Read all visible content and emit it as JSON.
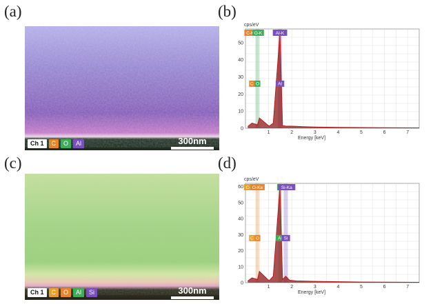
{
  "panels": {
    "a": {
      "label": "(a)"
    },
    "b": {
      "label": "(b)"
    },
    "c": {
      "label": "(c)"
    },
    "d": {
      "label": "(d)"
    }
  },
  "map_a": {
    "legend": [
      {
        "text": "Ch 1",
        "color": "#ffffff"
      },
      {
        "text": "C",
        "color": "#e8872a"
      },
      {
        "text": "O",
        "color": "#3fae5a"
      },
      {
        "text": "Al",
        "color": "#7a4fc0"
      }
    ],
    "scalebar": "300nm"
  },
  "map_c": {
    "legend": [
      {
        "text": "Ch 1",
        "color": "#ffffff"
      },
      {
        "text": "C",
        "color": "#e8a02a"
      },
      {
        "text": "O",
        "color": "#e8872a"
      },
      {
        "text": "Al",
        "color": "#3fae5a"
      },
      {
        "text": "Si",
        "color": "#7a4fc0"
      }
    ],
    "scalebar": "300nm"
  },
  "spectrum_b": {
    "ylabel": "cps/eV",
    "xlabel": "Energy [keV]",
    "yticks": [
      "0",
      "10",
      "20",
      "30",
      "40",
      "50"
    ],
    "xticks": [
      "1",
      "2",
      "3",
      "4",
      "5",
      "6",
      "7"
    ],
    "top_tags": [
      {
        "text": "C-K",
        "color": "#e8872a"
      },
      {
        "text": "O-K",
        "color": "#3fae5a"
      },
      {
        "text": "Al-K",
        "color": "#7a4fc0"
      }
    ],
    "mid_tags": [
      {
        "text": "C",
        "color": "#e8872a"
      },
      {
        "text": "O",
        "color": "#3fae5a"
      },
      {
        "text": "Al",
        "color": "#7a4fc0"
      }
    ]
  },
  "spectrum_d": {
    "ylabel": "cps/eV",
    "xlabel": "Energy [keV]",
    "yticks": [
      "0",
      "10",
      "20",
      "30",
      "40",
      "50",
      "60"
    ],
    "xticks": [
      "1",
      "2",
      "3",
      "4",
      "5",
      "6",
      "7"
    ],
    "top_tags": [
      {
        "text": "C-K",
        "color": "#e8a02a"
      },
      {
        "text": "O-Ka",
        "color": "#e8872a"
      },
      {
        "text": "A",
        "color": "#3fae5a"
      },
      {
        "text": "Si-Ka",
        "color": "#7a4fc0"
      }
    ],
    "mid_tags": [
      {
        "text": "C",
        "color": "#e8a02a"
      },
      {
        "text": "O",
        "color": "#e8872a"
      },
      {
        "text": "Al",
        "color": "#3fae5a"
      },
      {
        "text": "Si",
        "color": "#7a4fc0"
      }
    ]
  },
  "chart_data": [
    {
      "type": "line",
      "panel": "(b)",
      "xlabel": "Energy [keV]",
      "ylabel": "cps/eV",
      "xlim": [
        0,
        7.5
      ],
      "ylim": [
        0,
        58
      ],
      "series": [
        {
          "x": [
            0.1,
            0.28,
            0.52,
            0.6,
            1.02,
            1.2,
            1.49,
            1.6,
            1.75,
            2.0,
            2.5,
            3.0,
            4.0,
            5.0,
            6.0,
            7.5
          ],
          "y": [
            1,
            3,
            2,
            6,
            1.2,
            3,
            56,
            1.5,
            1.2,
            1.2,
            0.9,
            0.7,
            0.5,
            0.4,
            0.3,
            0.2
          ]
        }
      ]
    },
    {
      "type": "line",
      "panel": "(d)",
      "xlabel": "Energy [keV]",
      "ylabel": "cps/eV",
      "xlim": [
        0,
        7.5
      ],
      "ylim": [
        0,
        62
      ],
      "series": [
        {
          "x": [
            0.1,
            0.28,
            0.52,
            0.6,
            1.02,
            1.2,
            1.49,
            1.6,
            1.74,
            1.9,
            2.2,
            3.0,
            4.0,
            5.0,
            6.0,
            7.5
          ],
          "y": [
            1,
            3,
            2,
            7,
            1.2,
            4,
            60,
            2,
            4,
            1.5,
            1.1,
            0.8,
            0.6,
            0.4,
            0.3,
            0.2
          ]
        }
      ]
    }
  ]
}
